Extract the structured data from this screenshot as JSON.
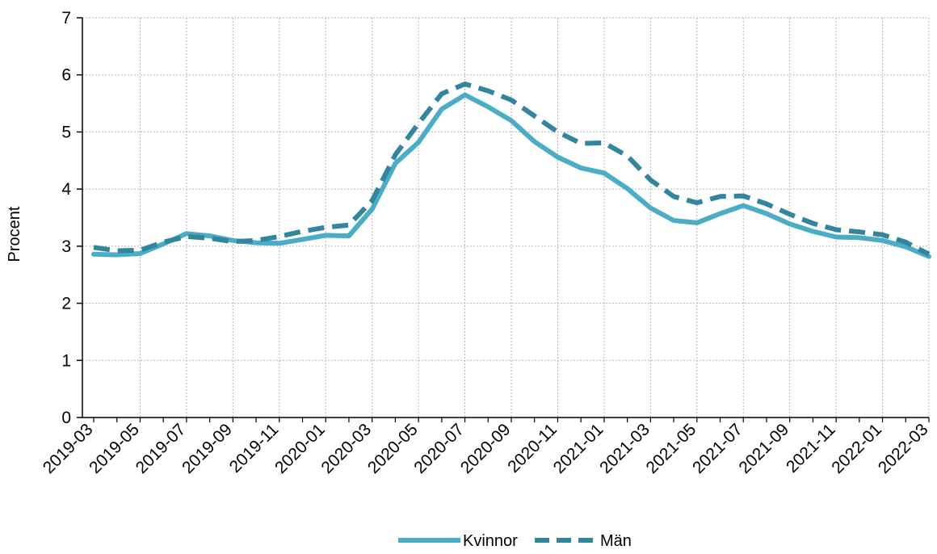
{
  "chart_data": {
    "type": "line",
    "title": "",
    "xlabel": "",
    "ylabel": "Procent",
    "ylim": [
      0,
      7
    ],
    "yticks": [
      0,
      1,
      2,
      3,
      4,
      5,
      6,
      7
    ],
    "grid": true,
    "legend_position": "bottom",
    "x": [
      "2019-03",
      "2019-04",
      "2019-05",
      "2019-06",
      "2019-07",
      "2019-08",
      "2019-09",
      "2019-10",
      "2019-11",
      "2019-12",
      "2020-01",
      "2020-02",
      "2020-03",
      "2020-04",
      "2020-05",
      "2020-06",
      "2020-07",
      "2020-08",
      "2020-09",
      "2020-10",
      "2020-11",
      "2020-12",
      "2021-01",
      "2021-02",
      "2021-03",
      "2021-04",
      "2021-05",
      "2021-06",
      "2021-07",
      "2021-08",
      "2021-09",
      "2021-10",
      "2021-11",
      "2021-12",
      "2022-01",
      "2022-02",
      "2022-03"
    ],
    "xtick_labels": [
      "2019-03",
      "2019-05",
      "2019-07",
      "2019-09",
      "2019-11",
      "2020-01",
      "2020-03",
      "2020-05",
      "2020-07",
      "2020-09",
      "2020-11",
      "2021-01",
      "2021-03",
      "2021-05",
      "2021-07",
      "2021-09",
      "2021-11",
      "2022-01",
      "2022-03"
    ],
    "series": [
      {
        "name": "Kvinnor",
        "color": "#4bacc6",
        "style": "solid",
        "values": [
          2.86,
          2.85,
          2.87,
          3.04,
          3.22,
          3.18,
          3.1,
          3.06,
          3.05,
          3.12,
          3.19,
          3.18,
          3.65,
          4.45,
          4.82,
          5.4,
          5.65,
          5.44,
          5.2,
          4.83,
          4.56,
          4.37,
          4.28,
          4.01,
          3.67,
          3.45,
          3.41,
          3.57,
          3.71,
          3.57,
          3.39,
          3.26,
          3.16,
          3.15,
          3.1,
          2.99,
          2.82
        ]
      },
      {
        "name": "Män",
        "color": "#31859c",
        "style": "dashed",
        "values": [
          2.98,
          2.92,
          2.93,
          3.07,
          3.17,
          3.14,
          3.08,
          3.1,
          3.17,
          3.26,
          3.33,
          3.37,
          3.8,
          4.6,
          5.15,
          5.67,
          5.84,
          5.72,
          5.56,
          5.28,
          5.0,
          4.8,
          4.81,
          4.58,
          4.16,
          3.87,
          3.76,
          3.87,
          3.88,
          3.74,
          3.56,
          3.4,
          3.29,
          3.25,
          3.2,
          3.07,
          2.86
        ]
      }
    ]
  },
  "colors": {
    "grid": "#b4b4b4",
    "axis": "#000000"
  }
}
